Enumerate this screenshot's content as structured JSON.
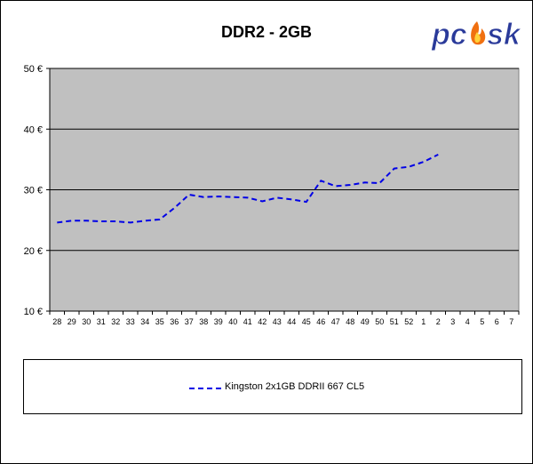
{
  "chart_data": {
    "type": "line",
    "title": "DDR2 - 2GB",
    "xlabel": "",
    "ylabel": "",
    "categories": [
      "28",
      "29",
      "30",
      "31",
      "32",
      "33",
      "34",
      "35",
      "36",
      "37",
      "38",
      "39",
      "40",
      "41",
      "42",
      "43",
      "44",
      "45",
      "46",
      "47",
      "48",
      "49",
      "50",
      "51",
      "52",
      "1",
      "2",
      "3",
      "4",
      "5",
      "6",
      "7"
    ],
    "series": [
      {
        "name": "Kingston 2x1GB DDRII 667 CL5",
        "color": "#0000e6",
        "values": [
          24.6,
          24.9,
          24.9,
          24.8,
          24.8,
          24.6,
          24.9,
          25.1,
          27.0,
          29.2,
          28.8,
          28.9,
          28.8,
          28.7,
          28.1,
          28.7,
          28.4,
          28.0,
          31.5,
          30.6,
          30.8,
          31.2,
          31.1,
          33.5,
          33.8,
          34.6,
          35.8,
          null,
          null,
          null,
          null,
          null
        ]
      }
    ],
    "ylim": [
      10,
      50
    ],
    "yticks": [
      10,
      20,
      30,
      40,
      50
    ],
    "ytick_labels": [
      "10 €",
      "20 €",
      "30 €",
      "40 €",
      "50 €"
    ],
    "grid": true,
    "plot_background": "#c0c0c0",
    "legend_position": "bottom"
  },
  "logo": {
    "text": "pcsk",
    "brand_color": "#2a3a9a",
    "flame_color": "#f07010"
  }
}
